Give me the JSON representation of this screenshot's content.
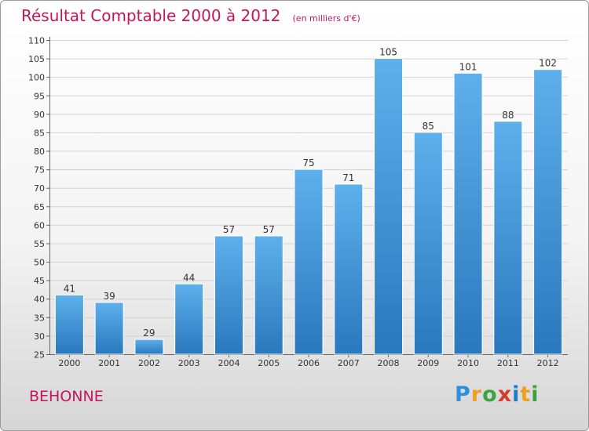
{
  "chart_data": {
    "type": "bar",
    "title": "Résultat Comptable 2000 à 2012",
    "subtitle": "(en milliers d'€)",
    "categories": [
      "2000",
      "2001",
      "2002",
      "2003",
      "2004",
      "2005",
      "2006",
      "2007",
      "2008",
      "2009",
      "2010",
      "2011",
      "2012"
    ],
    "values": [
      41,
      39,
      29,
      44,
      57,
      57,
      75,
      71,
      105,
      85,
      101,
      88,
      102
    ],
    "ylim": [
      25,
      110
    ],
    "yticks": [
      25,
      30,
      35,
      40,
      45,
      50,
      55,
      60,
      65,
      70,
      75,
      80,
      85,
      90,
      95,
      100,
      105,
      110
    ],
    "xlabel": "",
    "ylabel": "",
    "grid": true,
    "bar_color_top": "#5eb0ec",
    "bar_color_bottom": "#2a78bd"
  },
  "commune": "BEHONNE",
  "brand": {
    "letters": [
      "P",
      "r",
      "o",
      "x",
      "i",
      "t",
      "i"
    ]
  }
}
